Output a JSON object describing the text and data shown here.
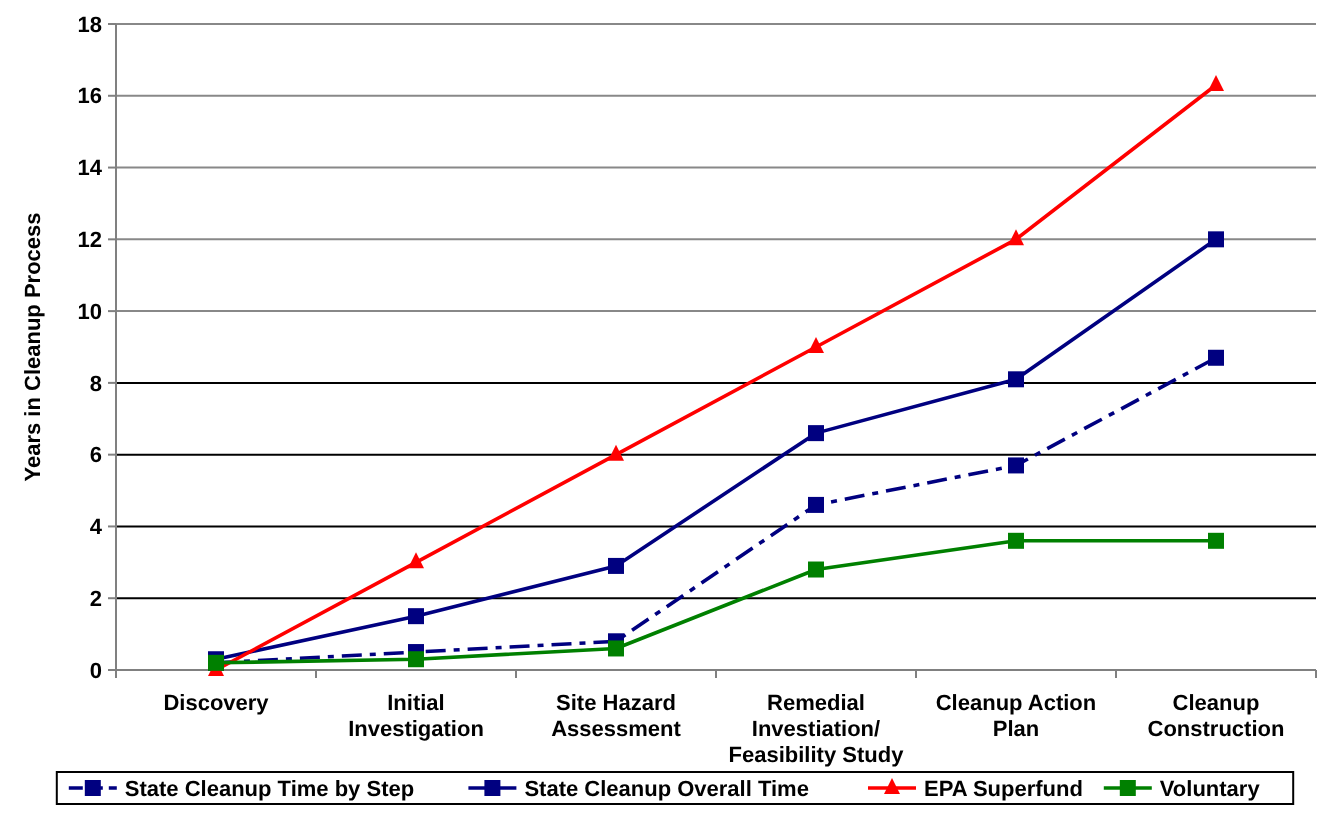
{
  "chart_data": {
    "type": "line",
    "ylabel": "Years in Cleanup Process",
    "categories": [
      "Discovery",
      "Initial\nInvestigation",
      "Site Hazard\nAssessment",
      "Remedial\nInvestiation/\nFeasibility Study",
      "Cleanup Action\nPlan",
      "Cleanup\nConstruction"
    ],
    "series": [
      {
        "name": "State Cleanup Time by Step",
        "color": "#000080",
        "marker": "square",
        "line_style": "dashed",
        "values": [
          0.2,
          0.5,
          0.8,
          4.6,
          5.7,
          8.7
        ]
      },
      {
        "name": "State Cleanup Overall Time",
        "color": "#000080",
        "marker": "square",
        "line_style": "solid",
        "values": [
          0.3,
          1.5,
          2.9,
          6.6,
          8.1,
          12.0
        ]
      },
      {
        "name": "EPA Superfund",
        "color": "#ff0000",
        "marker": "triangle",
        "line_style": "solid",
        "values": [
          0,
          3,
          6,
          9,
          12,
          16.3
        ]
      },
      {
        "name": "Voluntary",
        "color": "#008000",
        "marker": "square",
        "line_style": "solid",
        "values": [
          0.2,
          0.3,
          0.6,
          2.8,
          3.6,
          3.6
        ]
      }
    ],
    "ylim": [
      0,
      18
    ],
    "yticks": [
      0,
      2,
      4,
      6,
      8,
      10,
      12,
      14,
      16,
      18
    ],
    "grid": "y",
    "legend": "bottom"
  }
}
